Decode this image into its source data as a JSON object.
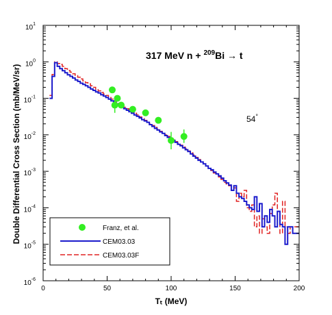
{
  "chart_data": {
    "type": "line",
    "title": "",
    "xlabel": "Tₜ (MeV)",
    "ylabel": "Double Differential Cross Section (mb/MeV/sr)",
    "xlim": [
      0,
      200
    ],
    "ylim": [
      1e-06,
      10
    ],
    "y_scale": "log",
    "x_ticks": [
      "0",
      "50",
      "100",
      "150",
      "200"
    ],
    "y_ticks": [
      {
        "base": "10",
        "exp": "1"
      },
      {
        "base": "10",
        "exp": "0"
      },
      {
        "base": "10",
        "exp": "-1"
      },
      {
        "base": "10",
        "exp": "-2"
      },
      {
        "base": "10",
        "exp": "-3"
      },
      {
        "base": "10",
        "exp": "-4"
      },
      {
        "base": "10",
        "exp": "-5"
      },
      {
        "base": "10",
        "exp": "-6"
      }
    ],
    "annotations": {
      "reaction_part1": "317 MeV n + ",
      "reaction_sup": "209",
      "reaction_part2": "Bi → t",
      "angle_text": "54",
      "angle_deg": "°"
    },
    "legend": {
      "placement": "bottom-left",
      "entries": [
        {
          "label": "Franz, et al.",
          "color": "#33ee22",
          "style": "marker"
        },
        {
          "label": "CEM03.03",
          "color": "#1a1acc",
          "style": "solid"
        },
        {
          "label": "CEM03.03F",
          "color": "#e02020",
          "style": "dashed"
        }
      ]
    },
    "series": [
      {
        "name": "Franz, et al.",
        "kind": "points",
        "color": "#33ee22",
        "points": [
          {
            "x": 54,
            "y": 0.17
          },
          {
            "x": 56,
            "y": 0.065,
            "err": [
              0.04,
              0.1
            ]
          },
          {
            "x": 58,
            "y": 0.1
          },
          {
            "x": 61,
            "y": 0.065
          },
          {
            "x": 70,
            "y": 0.05
          },
          {
            "x": 80,
            "y": 0.04
          },
          {
            "x": 90,
            "y": 0.025
          },
          {
            "x": 100,
            "y": 0.007,
            "err": [
              0.004,
              0.012
            ]
          },
          {
            "x": 110,
            "y": 0.009,
            "err": [
              0.006,
              0.014
            ]
          }
        ]
      },
      {
        "name": "CEM03.03",
        "kind": "step",
        "color": "#1a1acc",
        "edges": [
          5,
          7,
          9,
          11,
          13,
          15,
          17,
          19,
          21,
          23,
          25,
          27,
          29,
          31,
          33,
          35,
          37,
          39,
          41,
          43,
          45,
          47,
          49,
          51,
          53,
          55,
          57,
          59,
          61,
          63,
          65,
          67,
          69,
          71,
          73,
          75,
          77,
          79,
          81,
          83,
          85,
          87,
          89,
          91,
          93,
          95,
          97,
          99,
          101,
          103,
          105,
          107,
          109,
          111,
          113,
          115,
          117,
          119,
          121,
          123,
          125,
          127,
          129,
          131,
          133,
          135,
          137,
          139,
          141,
          143,
          145,
          147,
          149,
          151,
          153,
          155,
          157,
          159,
          161,
          163,
          165,
          167,
          169,
          171,
          173,
          175,
          177,
          179,
          181,
          183,
          185,
          187,
          189,
          191,
          193,
          195,
          197,
          199,
          200
        ],
        "values": [
          0.1,
          0.4,
          0.95,
          0.75,
          0.65,
          0.57,
          0.5,
          0.44,
          0.4,
          0.36,
          0.32,
          0.29,
          0.26,
          0.24,
          0.22,
          0.2,
          0.18,
          0.165,
          0.15,
          0.14,
          0.125,
          0.115,
          0.105,
          0.095,
          0.085,
          0.077,
          0.07,
          0.063,
          0.057,
          0.052,
          0.047,
          0.043,
          0.039,
          0.035,
          0.032,
          0.029,
          0.026,
          0.024,
          0.022,
          0.019,
          0.017,
          0.015,
          0.0135,
          0.012,
          0.011,
          0.0095,
          0.0085,
          0.0075,
          0.007,
          0.0062,
          0.0055,
          0.005,
          0.0044,
          0.0039,
          0.0035,
          0.003,
          0.0026,
          0.0023,
          0.002,
          0.0018,
          0.0016,
          0.0014,
          0.0012,
          0.0011,
          0.00095,
          0.00085,
          0.00075,
          0.00065,
          0.00055,
          0.00048,
          0.00042,
          0.0003,
          0.0004,
          0.00025,
          0.0002,
          0.00018,
          0.00015,
          0.00012,
          0.0001,
          9e-05,
          0.0002,
          8e-05,
          0.00013,
          3e-05,
          6e-05,
          4e-05,
          9e-05,
          6e-05,
          3e-05,
          8e-05,
          3.5e-05,
          3e-05,
          1e-05,
          3e-05,
          3e-05,
          2e-05,
          2e-05,
          2e-05
        ]
      },
      {
        "name": "CEM03.03F",
        "kind": "step",
        "color": "#e02020",
        "edges": [
          5,
          7,
          9,
          11,
          13,
          15,
          17,
          19,
          21,
          23,
          25,
          27,
          29,
          31,
          33,
          35,
          37,
          39,
          41,
          43,
          45,
          47,
          49,
          51,
          53,
          55,
          57,
          59,
          61,
          63,
          65,
          67,
          69,
          71,
          73,
          75,
          77,
          79,
          81,
          83,
          85,
          87,
          89,
          91,
          93,
          95,
          97,
          99,
          101,
          103,
          105,
          107,
          109,
          111,
          113,
          115,
          117,
          119,
          121,
          123,
          125,
          127,
          129,
          131,
          133,
          135,
          137,
          139,
          141,
          143,
          145,
          147,
          149,
          151,
          153,
          155,
          157,
          159,
          161,
          163,
          165,
          167,
          169,
          171,
          173,
          175,
          177,
          179,
          181,
          183,
          185,
          187,
          189,
          191,
          193,
          195,
          197,
          199,
          200
        ],
        "values": [
          0.12,
          0.45,
          1.0,
          0.9,
          0.85,
          0.75,
          0.65,
          0.58,
          0.52,
          0.47,
          0.42,
          0.38,
          0.34,
          0.3,
          0.27,
          0.25,
          0.22,
          0.2,
          0.18,
          0.16,
          0.145,
          0.13,
          0.12,
          0.105,
          0.095,
          0.085,
          0.077,
          0.07,
          0.063,
          0.057,
          0.052,
          0.047,
          0.043,
          0.039,
          0.035,
          0.031,
          0.028,
          0.025,
          0.022,
          0.02,
          0.018,
          0.016,
          0.014,
          0.0125,
          0.011,
          0.01,
          0.009,
          0.008,
          0.0072,
          0.0065,
          0.0058,
          0.0052,
          0.0046,
          0.0041,
          0.0036,
          0.0032,
          0.0028,
          0.0024,
          0.0021,
          0.0018,
          0.0016,
          0.0014,
          0.0012,
          0.00105,
          0.0009,
          0.0008,
          0.0007,
          0.0006,
          0.0005,
          0.00045,
          0.0004,
          0.0003,
          0.00035,
          0.00015,
          0.00025,
          0.0002,
          0.0003,
          0.0001,
          8e-05,
          0.00012,
          3e-05,
          6e-05,
          2e-05,
          5e-05,
          3e-05,
          2e-05,
          7e-05,
          0.00012,
          0.00025,
          8e-05,
          2e-05,
          0.00015,
          3e-05,
          2e-05,
          3e-05,
          3e-05,
          3e-05,
          3e-05
        ]
      }
    ]
  }
}
